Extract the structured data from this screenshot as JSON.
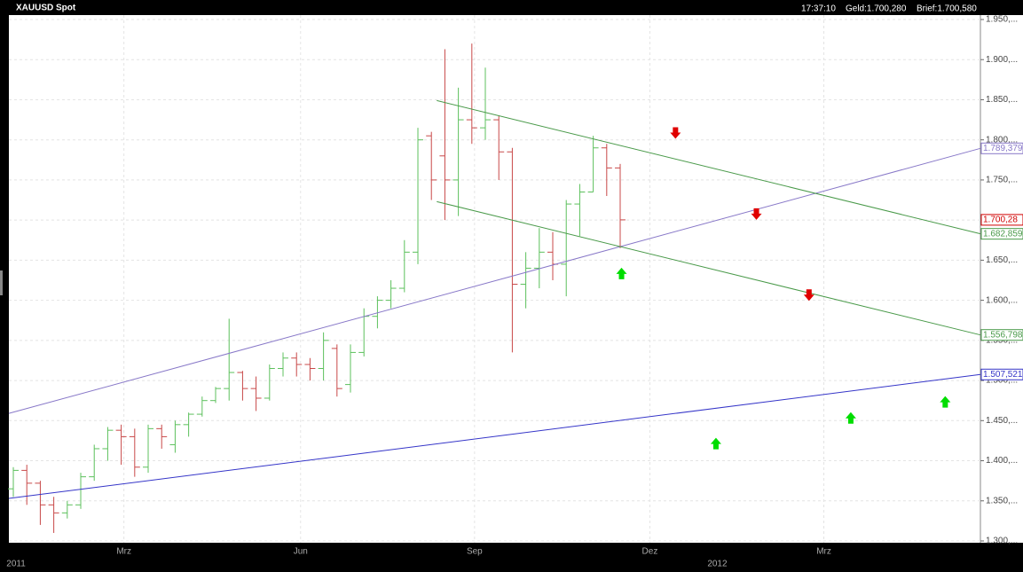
{
  "header": {
    "symbol": "XAUUSD Spot",
    "time": "17:37:10",
    "bid": "Geld:1.700,280",
    "ask": "Brief:1.700,580"
  },
  "chart_data": {
    "type": "ohlc",
    "x": [
      0,
      1,
      2,
      3,
      4,
      5,
      6,
      7,
      8,
      9,
      10,
      11,
      12,
      13,
      14,
      15,
      16,
      17,
      18,
      19,
      20,
      21,
      22,
      23,
      24,
      25,
      26,
      27,
      28,
      29,
      30,
      31,
      32,
      33,
      34,
      35,
      36,
      37,
      38,
      39,
      40,
      41,
      42,
      43,
      44,
      45
    ],
    "open": [
      1365,
      1388,
      1372,
      1345,
      1335,
      1345,
      1380,
      1415,
      1438,
      1430,
      1392,
      1440,
      1420,
      1445,
      1458,
      1475,
      1490,
      1510,
      1490,
      1478,
      1515,
      1528,
      1520,
      1515,
      1540,
      1495,
      1535,
      1580,
      1600,
      1615,
      1660,
      1805,
      1780,
      1750,
      1825,
      1815,
      1825,
      1785,
      1620,
      1640,
      1660,
      1645,
      1720,
      1735,
      1790,
      1765
    ],
    "high": [
      1392,
      1395,
      1375,
      1355,
      1350,
      1385,
      1420,
      1442,
      1445,
      1440,
      1445,
      1445,
      1450,
      1460,
      1480,
      1492,
      1577,
      1512,
      1505,
      1520,
      1535,
      1535,
      1528,
      1560,
      1545,
      1545,
      1590,
      1605,
      1625,
      1675,
      1815,
      1810,
      1913,
      1865,
      1920,
      1890,
      1830,
      1790,
      1660,
      1690,
      1685,
      1725,
      1745,
      1805,
      1795,
      1770
    ],
    "low": [
      1355,
      1345,
      1320,
      1310,
      1328,
      1340,
      1375,
      1400,
      1395,
      1380,
      1385,
      1415,
      1410,
      1430,
      1455,
      1472,
      1475,
      1475,
      1462,
      1475,
      1505,
      1505,
      1500,
      1500,
      1480,
      1485,
      1530,
      1565,
      1590,
      1610,
      1645,
      1725,
      1700,
      1705,
      1795,
      1800,
      1750,
      1535,
      1590,
      1615,
      1625,
      1605,
      1680,
      1735,
      1730,
      1665
    ],
    "close": [
      1388,
      1372,
      1345,
      1335,
      1345,
      1380,
      1415,
      1438,
      1430,
      1392,
      1440,
      1430,
      1445,
      1458,
      1475,
      1490,
      1510,
      1490,
      1478,
      1515,
      1528,
      1520,
      1515,
      1550,
      1490,
      1535,
      1580,
      1600,
      1615,
      1660,
      1800,
      1750,
      1750,
      1825,
      1815,
      1825,
      1785,
      1620,
      1640,
      1660,
      1645,
      1720,
      1735,
      1790,
      1765,
      1700.28
    ],
    "last_label": "1.700,28",
    "up_color": "#5cc05c",
    "down_color": "#c84848",
    "last_color": "#d00000",
    "xlim": [
      -0.33,
      71.71
    ],
    "xticks": [
      {
        "value": 8.2,
        "label": "Mrz"
      },
      {
        "value": 21.3,
        "label": "Jun"
      },
      {
        "value": 34.2,
        "label": "Sep"
      },
      {
        "value": 47.2,
        "label": "Dez"
      },
      {
        "value": 60.1,
        "label": "Mrz"
      }
    ],
    "x2ticks": [
      {
        "value": 0.2,
        "label": "2011"
      },
      {
        "value": 52.2,
        "label": "2012"
      }
    ],
    "ylim": [
      1300,
      1950
    ],
    "yticks": [
      {
        "value": 1300,
        "label": "1.300,..."
      },
      {
        "value": 1350,
        "label": "1.350,..."
      },
      {
        "value": 1400,
        "label": "1.400,..."
      },
      {
        "value": 1450,
        "label": "1.450,..."
      },
      {
        "value": 1500,
        "label": "1.500,..."
      },
      {
        "value": 1550,
        "label": "1.550,..."
      },
      {
        "value": 1600,
        "label": "1.600,..."
      },
      {
        "value": 1650,
        "label": "1.650,..."
      },
      {
        "value": 1700,
        "label": "1.700,..."
      },
      {
        "value": 1750,
        "label": "1.750,..."
      },
      {
        "value": 1800,
        "label": "1.800,..."
      },
      {
        "value": 1850,
        "label": "1.850,..."
      },
      {
        "value": 1900,
        "label": "1.900,..."
      },
      {
        "value": 1950,
        "label": "1.950,..."
      }
    ],
    "grid": true,
    "lines": [
      {
        "color": "#8878c8",
        "x": [
          -0.33,
          71.71
        ],
        "values": [
          1459,
          1789.379
        ],
        "end_label": "1.789,379"
      },
      {
        "color": "#3535c8",
        "x": [
          -0.33,
          71.71
        ],
        "values": [
          1353,
          1507.521
        ],
        "end_label": "1.507,521"
      },
      {
        "color": "#4a9a4a",
        "x": [
          31.4,
          71.71
        ],
        "values": [
          1849,
          1682.859
        ],
        "end_label": "1.682,859"
      },
      {
        "color": "#4a9a4a",
        "x": [
          31.4,
          71.71
        ],
        "values": [
          1723,
          1556.798
        ],
        "end_label": "1.556,798"
      }
    ],
    "signals": {
      "sell": {
        "color": "#e00000",
        "x": [
          49.1,
          55.1,
          59.0
        ],
        "values": [
          1808,
          1707,
          1606
        ]
      },
      "buy": {
        "color": "#00dd00",
        "x": [
          45.1,
          52.1,
          62.1,
          69.1
        ],
        "values": [
          1634,
          1422,
          1454,
          1474
        ]
      }
    }
  }
}
